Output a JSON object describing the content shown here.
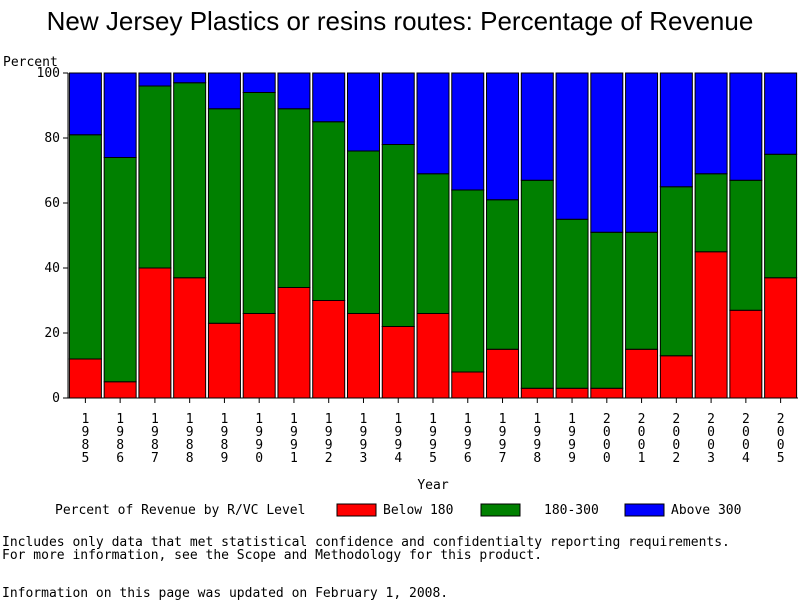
{
  "chart_data": {
    "type": "bar",
    "stacked": true,
    "title": "New Jersey Plastics or resins routes: Percentage of Revenue",
    "ylabel": "Percent",
    "xlabel": "Year",
    "ylim": [
      0,
      100
    ],
    "yticks": [
      0,
      20,
      40,
      60,
      80,
      100
    ],
    "categories": [
      "1985",
      "1986",
      "1987",
      "1988",
      "1989",
      "1990",
      "1991",
      "1992",
      "1993",
      "1994",
      "1995",
      "1996",
      "1997",
      "1998",
      "1999",
      "2000",
      "2001",
      "2002",
      "2003",
      "2004",
      "2005"
    ],
    "legend_title": "Percent of Revenue by R/VC Level",
    "series": [
      {
        "name": "Below 180",
        "color": "#ff0000",
        "values": [
          12,
          5,
          40,
          37,
          23,
          26,
          34,
          30,
          26,
          22,
          26,
          8,
          15,
          3,
          3,
          3,
          15,
          13,
          45,
          27,
          37
        ]
      },
      {
        "name": "180-300",
        "color": "#008000",
        "values": [
          69,
          69,
          56,
          60,
          66,
          68,
          55,
          55,
          50,
          56,
          43,
          56,
          46,
          64,
          52,
          48,
          36,
          52,
          24,
          40,
          38
        ]
      },
      {
        "name": "Above 300",
        "color": "#0000ff",
        "values": [
          19,
          26,
          4,
          3,
          11,
          6,
          11,
          15,
          24,
          22,
          31,
          36,
          39,
          33,
          45,
          49,
          49,
          35,
          31,
          33,
          25
        ]
      }
    ]
  },
  "notes": {
    "line1": "Includes only data that met statistical confidence and confidentialty reporting requirements.",
    "line2": "For more information, see the Scope and Methodology for this product.",
    "updated": "Information on this page was updated on February 1, 2008."
  }
}
